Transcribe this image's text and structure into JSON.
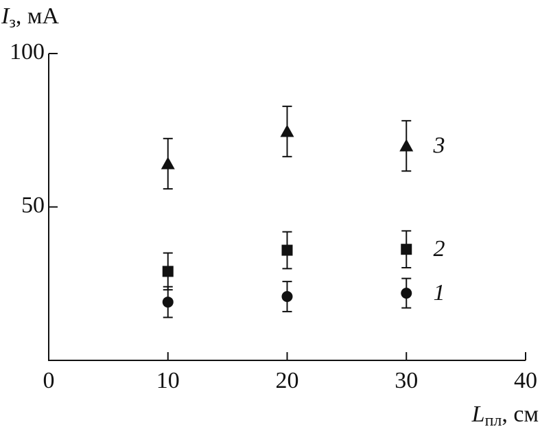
{
  "chart_data": {
    "type": "scatter",
    "y_label": {
      "symbol": "I",
      "subscript": "з",
      "unit": ", мА"
    },
    "x_label": {
      "symbol": "L",
      "subscript": "пл",
      "unit": ", см"
    },
    "x": [
      10,
      20,
      30
    ],
    "series": [
      {
        "name": "1",
        "marker": "circle",
        "color": "#111111",
        "values": [
          19.0,
          20.8,
          21.9
        ],
        "errors": [
          5.0,
          4.9,
          4.8
        ]
      },
      {
        "name": "2",
        "marker": "square",
        "color": "#111111",
        "values": [
          29.0,
          35.9,
          36.2
        ],
        "errors": [
          6.0,
          6.0,
          6.0
        ]
      },
      {
        "name": "3",
        "marker": "triangle",
        "color": "#111111",
        "values": [
          64.1,
          74.6,
          69.9
        ],
        "errors": [
          8.2,
          8.2,
          8.2
        ]
      }
    ],
    "xlim": [
      0,
      40
    ],
    "xticks": [
      0,
      10,
      20,
      30,
      40
    ],
    "ylim": [
      0,
      100
    ],
    "yticks": [
      50,
      100
    ]
  }
}
